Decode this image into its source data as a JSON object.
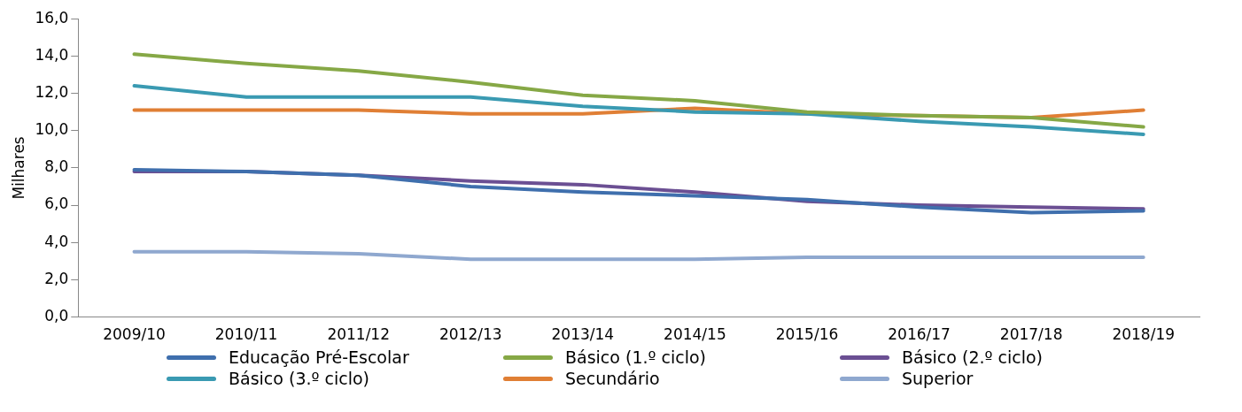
{
  "chart_data": {
    "type": "line",
    "ylabel": "Milhares",
    "categories": [
      "2009/10",
      "2010/11",
      "2011/12",
      "2012/13",
      "2013/14",
      "2014/15",
      "2015/16",
      "2016/17",
      "2017/18",
      "2018/19"
    ],
    "series": [
      {
        "name": "Educação Pré-Escolar",
        "color": "#3f6fad",
        "values": [
          7.9,
          7.8,
          7.6,
          7.0,
          6.7,
          6.5,
          6.3,
          5.9,
          5.6,
          5.7
        ]
      },
      {
        "name": "Básico (1.º ciclo)",
        "color": "#86a846",
        "values": [
          14.1,
          13.6,
          13.2,
          12.6,
          11.9,
          11.6,
          11.0,
          10.8,
          10.7,
          10.2
        ]
      },
      {
        "name": "Básico (2.º ciclo)",
        "color": "#6b4f93",
        "values": [
          7.8,
          7.8,
          7.6,
          7.3,
          7.1,
          6.7,
          6.2,
          6.0,
          5.9,
          5.8
        ]
      },
      {
        "name": "Básico (3.º ciclo)",
        "color": "#3a9ab2",
        "values": [
          12.4,
          11.8,
          11.8,
          11.8,
          11.3,
          11.0,
          10.9,
          10.5,
          10.2,
          9.8
        ]
      },
      {
        "name": "Secundário",
        "color": "#e07f35",
        "values": [
          11.1,
          11.1,
          11.1,
          10.9,
          10.9,
          11.2,
          10.9,
          10.8,
          10.7,
          11.1
        ]
      },
      {
        "name": "Superior",
        "color": "#8fa8cf",
        "values": [
          3.5,
          3.5,
          3.4,
          3.1,
          3.1,
          3.1,
          3.2,
          3.2,
          3.2,
          3.2
        ]
      }
    ],
    "ylim": [
      0,
      16
    ],
    "yticks": [
      {
        "value": 0,
        "label": "0,0"
      },
      {
        "value": 2,
        "label": "2,0"
      },
      {
        "value": 4,
        "label": "4,0"
      },
      {
        "value": 6,
        "label": "6,0"
      },
      {
        "value": 8,
        "label": "8,0"
      },
      {
        "value": 10,
        "label": "10,0"
      },
      {
        "value": 12,
        "label": "12,0"
      },
      {
        "value": 14,
        "label": "14,0"
      },
      {
        "value": 16,
        "label": "16,0"
      }
    ],
    "grid": false,
    "legend": "bottom",
    "marker": "none",
    "line_style": "solid"
  }
}
